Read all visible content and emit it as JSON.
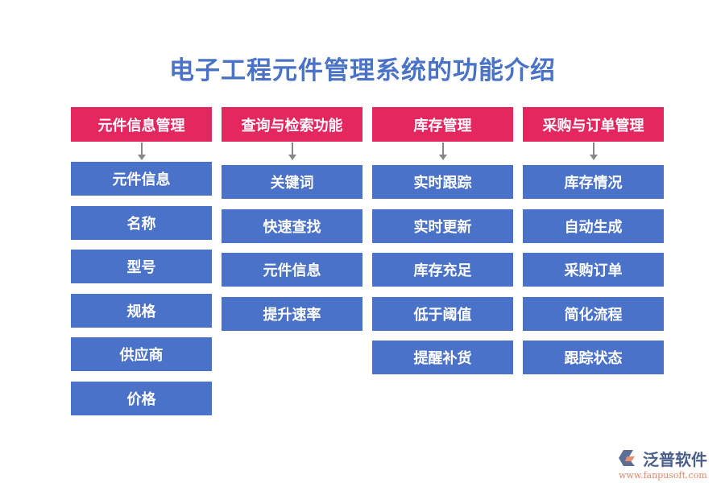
{
  "title": "电子工程元件管理系统的功能介绍",
  "columns": [
    {
      "header": "元件信息管理",
      "items": [
        "元件信息",
        "名称",
        "型号",
        "规格",
        "供应商",
        "价格"
      ]
    },
    {
      "header": "查询与检索功能",
      "items": [
        "关键词",
        "快速查找",
        "元件信息",
        "提升速率"
      ]
    },
    {
      "header": "库存管理",
      "items": [
        "实时跟踪",
        "实时更新",
        "库存充足",
        "低于阈值",
        "提醒补货"
      ]
    },
    {
      "header": "采购与订单管理",
      "items": [
        "库存情况",
        "自动生成",
        "采购订单",
        "简化流程",
        "跟踪状态"
      ]
    }
  ],
  "logo": {
    "name": "泛普软件",
    "url": "www.fanpusoft.com"
  },
  "colors": {
    "header": "#e4275f",
    "item": "#4a72c9",
    "title": "#4a72c6"
  }
}
